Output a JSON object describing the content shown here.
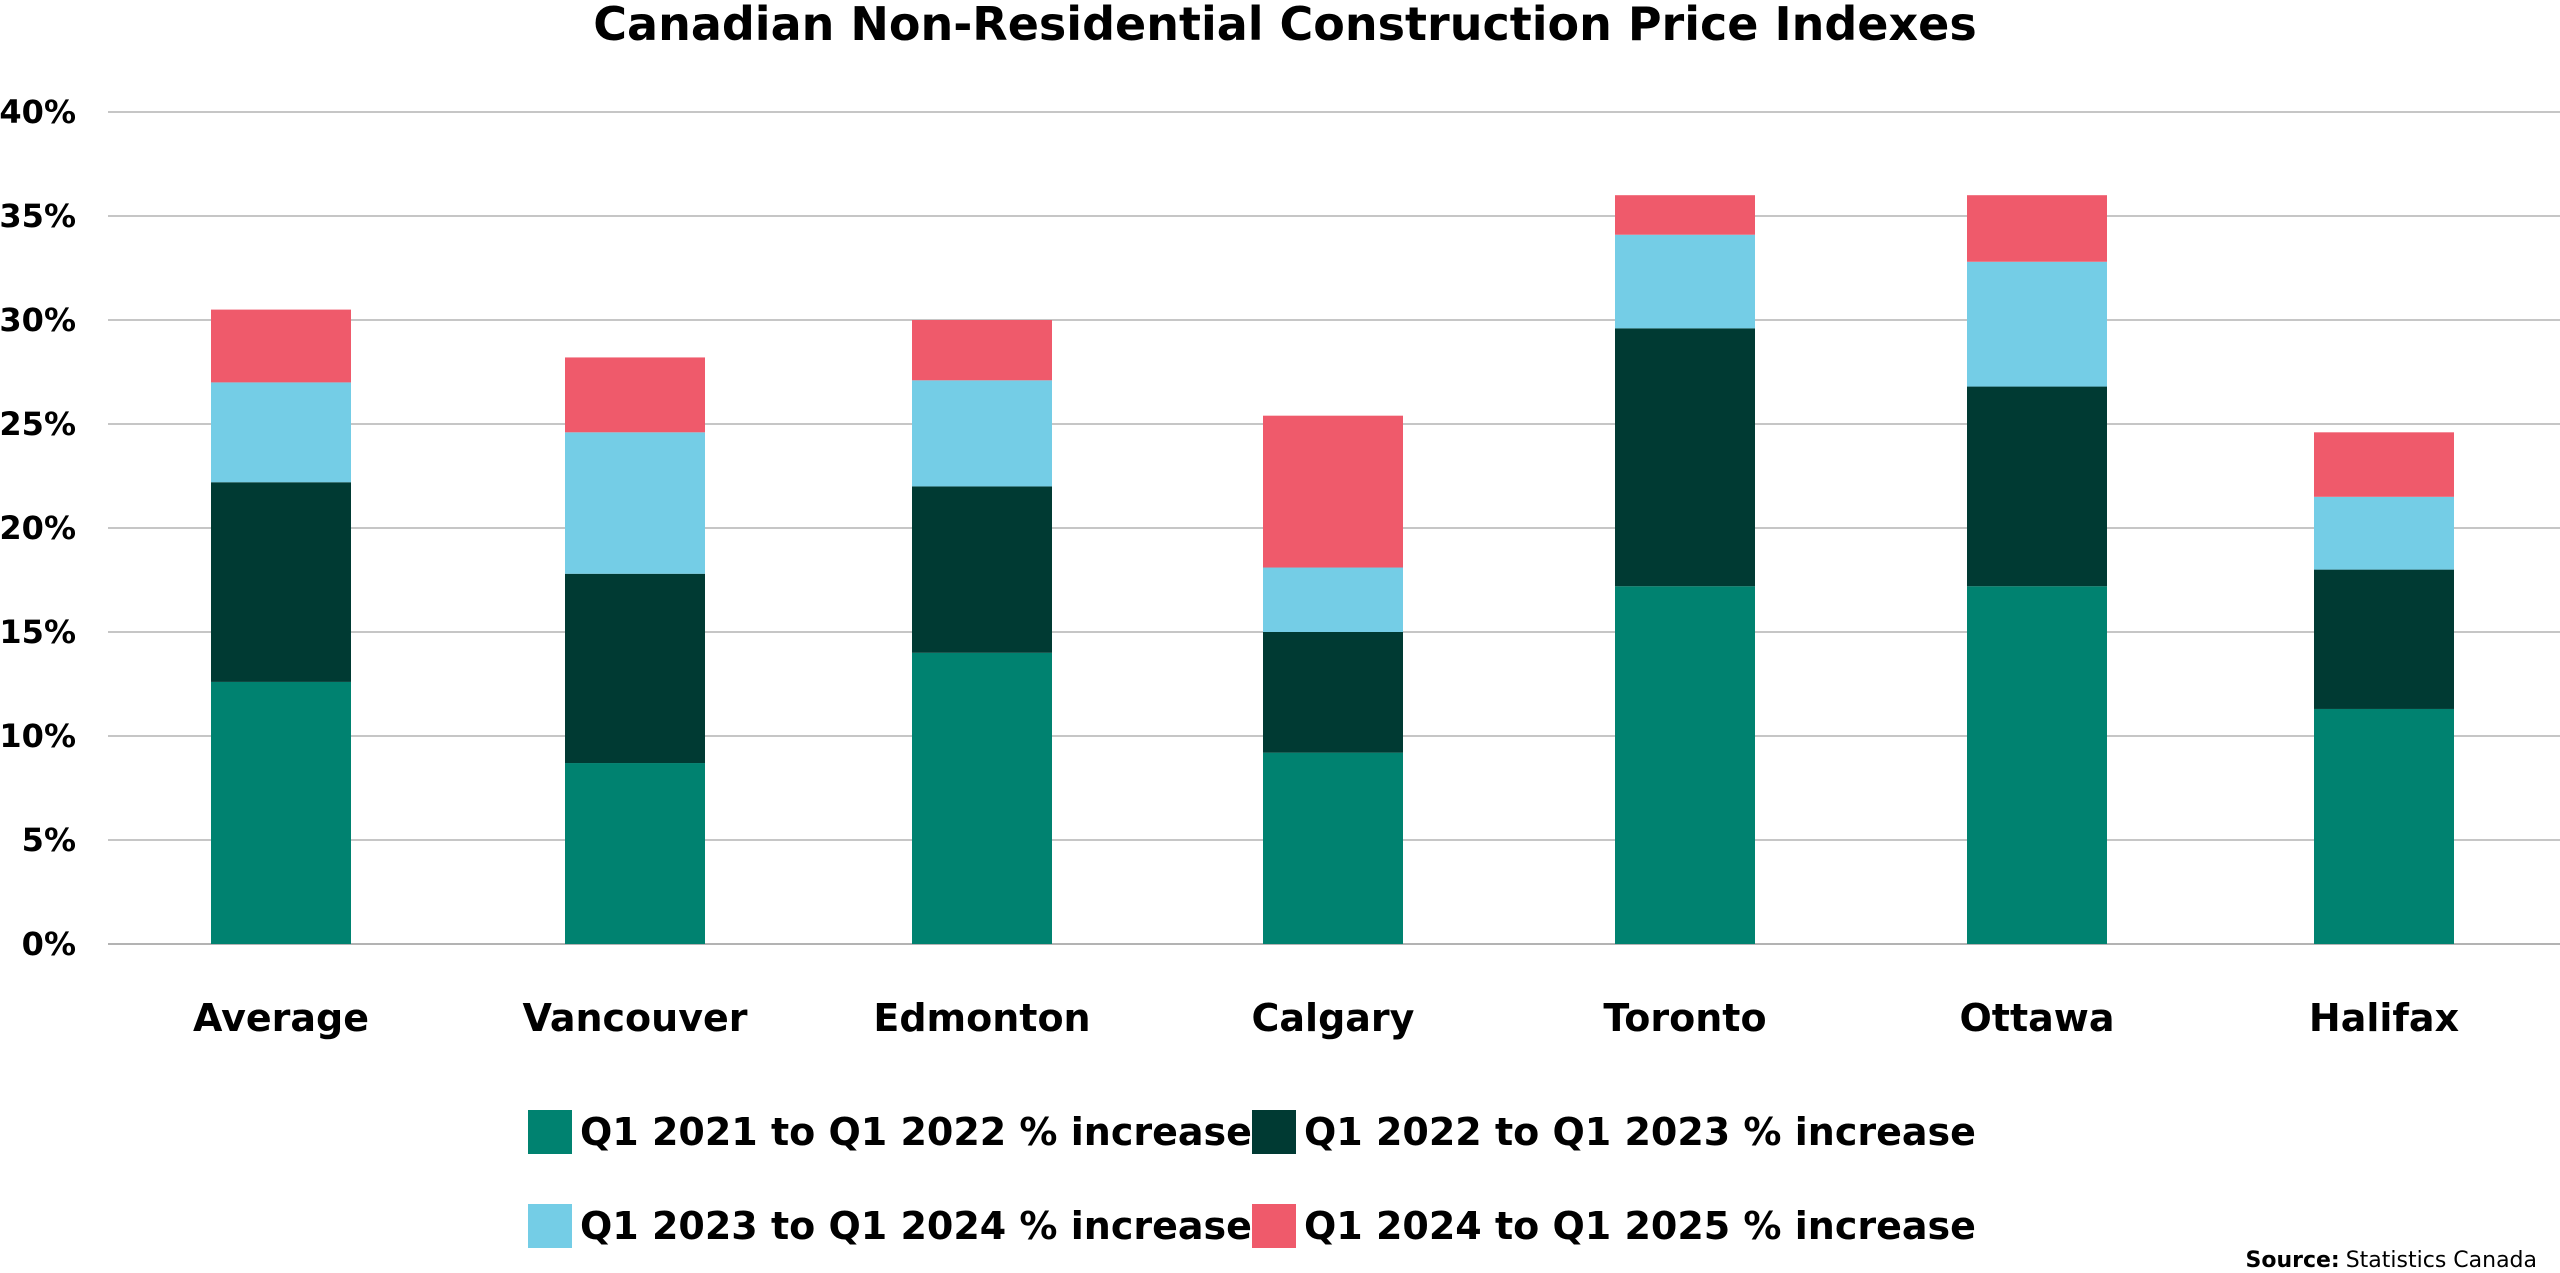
{
  "chart_data": {
    "type": "bar",
    "stacked": true,
    "title": "Canadian Non-Residential Construction Price Indexes",
    "xlabel": "",
    "ylabel": "",
    "ylim": [
      0,
      40
    ],
    "yticks": [
      0,
      5,
      10,
      15,
      20,
      25,
      30,
      35,
      40
    ],
    "ytick_labels": [
      "0%",
      "5%",
      "10%",
      "15%",
      "20%",
      "25%",
      "30%",
      "35%",
      "40%"
    ],
    "grid": true,
    "legend_position": "bottom",
    "categories": [
      "Average",
      "Vancouver",
      "Edmonton",
      "Calgary",
      "Toronto",
      "Ottawa",
      "Halifax"
    ],
    "series": [
      {
        "name": "Q1 2021 to Q1 2022 % increase",
        "color": "#008270",
        "values": [
          12.6,
          8.7,
          14.0,
          9.2,
          17.2,
          17.2,
          11.3
        ]
      },
      {
        "name": "Q1 2022 to Q1 2023 % increase",
        "color": "#003a33",
        "values": [
          9.6,
          9.1,
          8.0,
          5.8,
          12.4,
          9.6,
          6.7
        ]
      },
      {
        "name": "Q1 2023 to Q1 2024 % increase",
        "color": "#74cde6",
        "values": [
          4.8,
          6.8,
          5.1,
          3.1,
          4.5,
          6.0,
          3.5
        ]
      },
      {
        "name": "Q1 2024 to Q1 2025 % increase",
        "color": "#ef5a6b",
        "values": [
          3.5,
          3.6,
          2.9,
          7.3,
          1.9,
          3.2,
          3.1
        ]
      }
    ],
    "source_label": "Source:",
    "source_text": "Statistics Canada"
  }
}
